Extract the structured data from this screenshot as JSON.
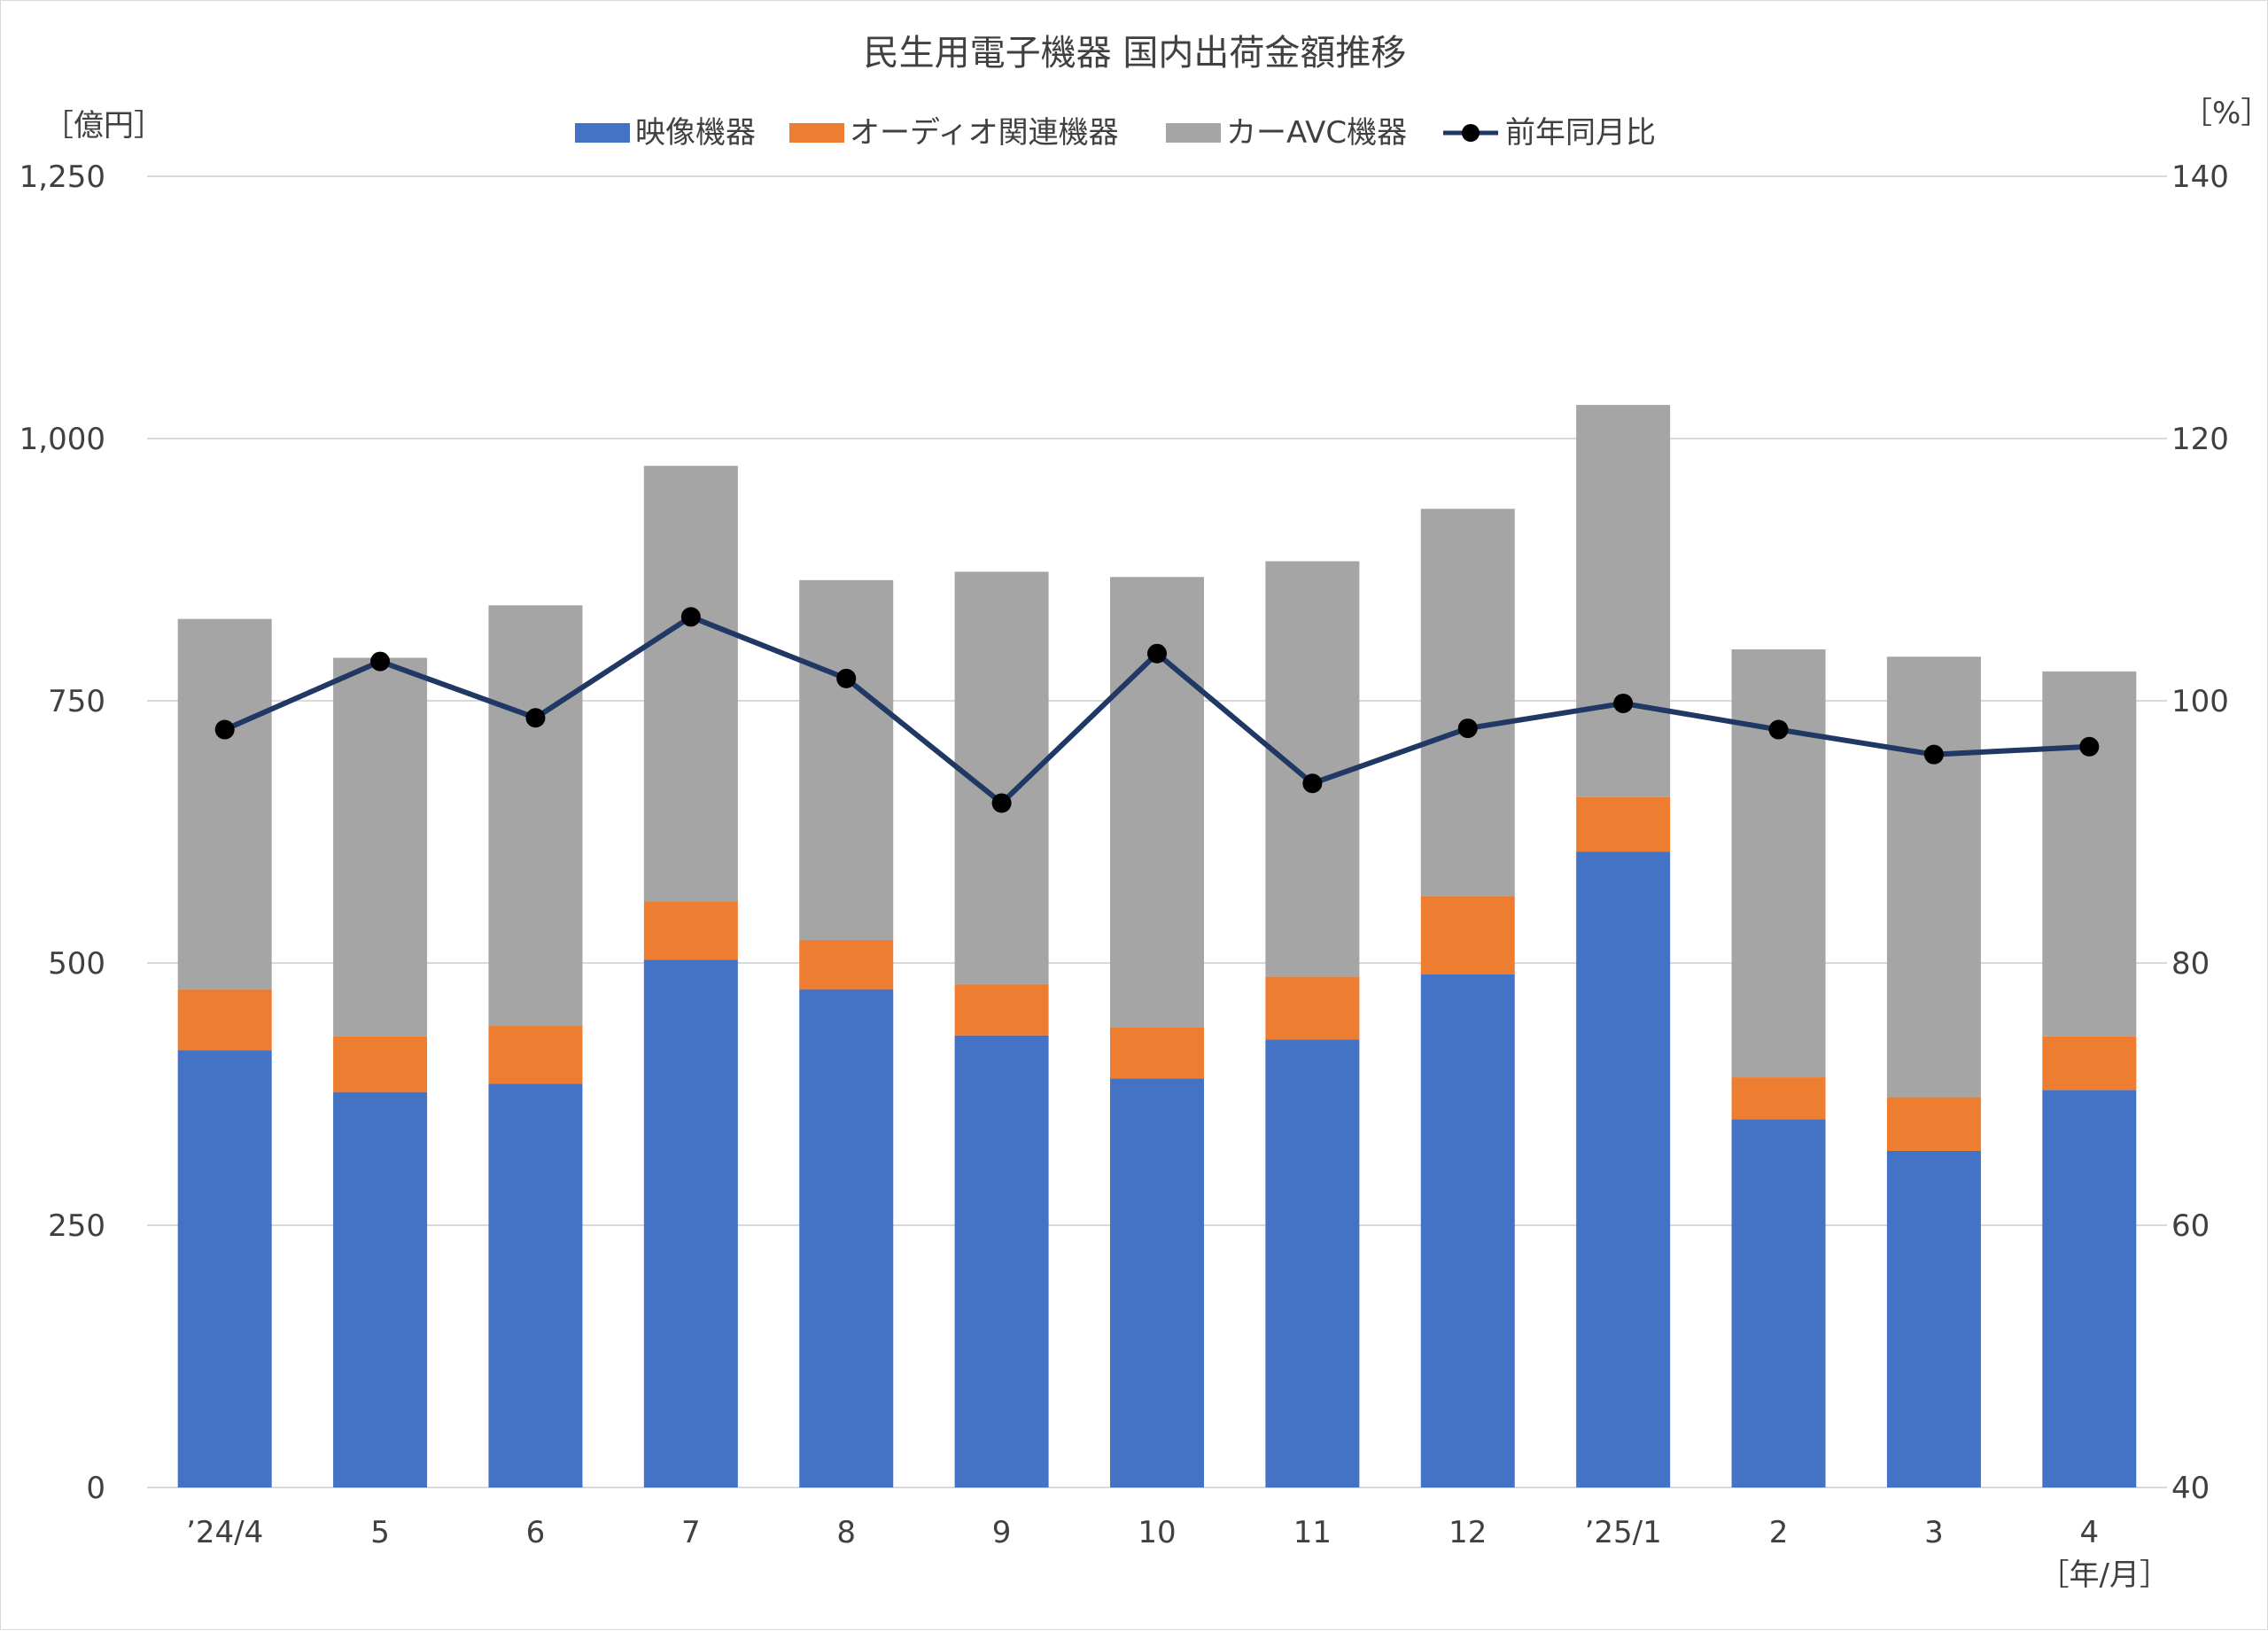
{
  "chart_data": {
    "type": "bar",
    "stacked": true,
    "title": "民生用電子機器 国内出荷金額推移",
    "y_left_unit": "［億円］",
    "y_right_unit": "［%］",
    "x_unit": "［年/月］",
    "categories": [
      "’24/4",
      "5",
      "6",
      "7",
      "8",
      "9",
      "10",
      "11",
      "12",
      "’25/1",
      "2",
      "3",
      "4"
    ],
    "y_left": {
      "min": 0,
      "max": 1250,
      "ticks": [
        "0",
        "250",
        "500",
        "750",
        "1,000",
        "1,250"
      ]
    },
    "y_right": {
      "min": 40,
      "max": 140,
      "ticks": [
        "40",
        "60",
        "80",
        "100",
        "120",
        "140"
      ]
    },
    "series": [
      {
        "name": "映像機器",
        "type": "bar",
        "axis": "left",
        "color": "#4472c4",
        "values": [
          417,
          377,
          385,
          503,
          475,
          431,
          390,
          427,
          489,
          606,
          351,
          321,
          379
        ]
      },
      {
        "name": "オーディオ関連機器",
        "type": "bar",
        "axis": "left",
        "color": "#ed7d31",
        "values": [
          58,
          53,
          55,
          56,
          47,
          49,
          49,
          60,
          75,
          52,
          40,
          51,
          51
        ]
      },
      {
        "name": "カーAVC機器",
        "type": "bar",
        "axis": "left",
        "color": "#a5a5a5",
        "values": [
          353,
          361,
          401,
          415,
          343,
          393,
          429,
          396,
          369,
          374,
          408,
          420,
          348
        ]
      },
      {
        "name": "前年同月比",
        "type": "line",
        "axis": "right",
        "color": "#203864",
        "values": [
          97.8,
          103.0,
          98.7,
          106.4,
          101.7,
          92.2,
          103.6,
          93.7,
          97.9,
          99.8,
          97.8,
          95.9,
          96.5
        ]
      }
    ],
    "grid": true,
    "legend_position": "top-center"
  }
}
